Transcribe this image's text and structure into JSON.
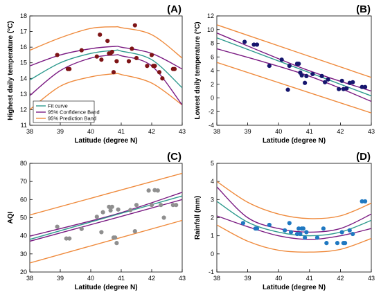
{
  "colors": {
    "fit": "#2e9a8e",
    "confidence": "#7a1a82",
    "prediction": "#ef8a3c",
    "series_a": "#7e1416",
    "series_b": "#16166e",
    "series_c": "#8f8f8f",
    "series_d": "#1f78c1"
  },
  "chart_data": [
    {
      "type": "scatter",
      "panel_label": "(A)",
      "xlabel": "Latitude (degree N)",
      "ylabel": "Highest daily temperature (°C)",
      "xlim": [
        38,
        43
      ],
      "ylim": [
        11,
        18
      ],
      "xticks": [
        "38",
        "39",
        "40",
        "41",
        "42",
        "43"
      ],
      "yticks": [
        "11",
        "12",
        "13",
        "14",
        "15",
        "16",
        "17",
        "18"
      ],
      "legend": {
        "placement": "bottom-left",
        "entries": [
          "Fit curve",
          "95% Confidence Band",
          "95% Prediction Band"
        ]
      },
      "points": {
        "x": [
          38.9,
          39.25,
          39.3,
          39.7,
          40.2,
          40.3,
          40.35,
          40.55,
          40.6,
          40.65,
          40.7,
          40.75,
          40.85,
          41.25,
          41.35,
          41.45,
          41.5,
          41.85,
          42.0,
          42.05,
          42.1,
          42.25,
          42.35,
          42.7,
          42.75
        ],
        "y": [
          15.5,
          14.6,
          14.6,
          15.8,
          15.4,
          16.8,
          15.2,
          16.4,
          15.6,
          15.6,
          15.7,
          14.4,
          15.1,
          15.1,
          15.9,
          17.4,
          15.3,
          14.8,
          15.5,
          14.8,
          14.8,
          14.4,
          14.0,
          14.6,
          14.6
        ]
      },
      "fit": {
        "x": [
          38,
          39,
          40,
          40.8,
          41,
          42,
          43
        ],
        "y": [
          13.9,
          15.0,
          15.6,
          15.8,
          15.75,
          15.2,
          13.4
        ]
      },
      "confidence_upper": {
        "x": [
          38,
          39,
          40,
          40.8,
          41,
          42,
          43
        ],
        "y": [
          14.8,
          15.5,
          15.9,
          16.05,
          16.0,
          15.6,
          14.6
        ]
      },
      "confidence_lower": {
        "x": [
          38,
          39,
          40,
          40.8,
          41,
          42,
          43
        ],
        "y": [
          12.9,
          14.5,
          15.3,
          15.5,
          15.45,
          14.8,
          12.3
        ]
      },
      "prediction_upper": {
        "x": [
          38,
          39,
          40,
          40.8,
          41,
          42,
          43
        ],
        "y": [
          15.8,
          16.6,
          17.2,
          17.3,
          17.25,
          16.8,
          15.3
        ]
      },
      "prediction_lower": {
        "x": [
          38,
          39,
          40,
          40.8,
          41,
          42,
          43
        ],
        "y": [
          12.0,
          13.5,
          14.1,
          14.3,
          14.25,
          13.7,
          12.3
        ]
      }
    },
    {
      "type": "scatter",
      "panel_label": "(B)",
      "xlabel": "Latitude (degree N)",
      "ylabel": "Lowest daily temperature (°C)",
      "xlim": [
        38,
        43
      ],
      "ylim": [
        -4,
        12
      ],
      "xticks": [
        "38",
        "39",
        "40",
        "41",
        "42",
        "43"
      ],
      "yticks": [
        "-4",
        "-2",
        "0",
        "2",
        "4",
        "6",
        "8",
        "10",
        "12"
      ],
      "points": {
        "x": [
          38.9,
          39.2,
          39.3,
          39.7,
          40.1,
          40.3,
          40.35,
          40.6,
          40.65,
          40.7,
          40.75,
          40.85,
          40.9,
          41.1,
          41.4,
          41.5,
          41.6,
          41.95,
          42.05,
          42.1,
          42.2,
          42.3,
          42.4,
          42.7,
          42.8
        ],
        "y": [
          8.2,
          7.8,
          7.8,
          4.7,
          5.6,
          1.2,
          4.7,
          5.0,
          5.0,
          3.7,
          3.3,
          2.2,
          3.2,
          3.5,
          3.2,
          2.3,
          2.7,
          1.3,
          2.5,
          1.3,
          1.4,
          2.2,
          2.3,
          1.6,
          1.6
        ]
      },
      "fit": {
        "x": [
          38,
          43
        ],
        "y": [
          8.8,
          0.3
        ]
      },
      "confidence_upper": {
        "x": [
          38,
          40.8,
          43
        ],
        "y": [
          9.5,
          4.3,
          1.0
        ]
      },
      "confidence_lower": {
        "x": [
          38,
          40.8,
          43
        ],
        "y": [
          7.2,
          3.5,
          -0.5
        ]
      },
      "prediction_upper": {
        "x": [
          38,
          43
        ],
        "y": [
          10.7,
          3.0
        ]
      },
      "prediction_lower": {
        "x": [
          38,
          43
        ],
        "y": [
          5.2,
          -2.2
        ]
      }
    },
    {
      "type": "scatter",
      "panel_label": "(C)",
      "xlabel": "Latitude (degree N)",
      "ylabel": "AQI",
      "xlim": [
        38,
        43
      ],
      "ylim": [
        20,
        80
      ],
      "xticks": [
        "38",
        "39",
        "40",
        "41",
        "42",
        "43"
      ],
      "yticks": [
        "20",
        "30",
        "40",
        "50",
        "60",
        "70",
        "80"
      ],
      "points": {
        "x": [
          38.9,
          39.2,
          39.3,
          39.7,
          40.2,
          40.35,
          40.4,
          40.6,
          40.65,
          40.7,
          40.75,
          40.8,
          40.85,
          40.9,
          41.3,
          41.45,
          41.5,
          41.9,
          42.0,
          42.1,
          42.2,
          42.3,
          42.4,
          42.7,
          42.8
        ],
        "y": [
          45,
          38.5,
          38.5,
          43.8,
          50.5,
          42,
          53,
          56,
          54,
          56,
          39,
          39,
          36,
          54.5,
          54.2,
          42.5,
          57,
          65,
          57,
          65.2,
          65,
          57,
          50,
          57,
          57
        ]
      },
      "fit": {
        "x": [
          38,
          43
        ],
        "y": [
          38.0,
          62.0
        ]
      },
      "confidence_upper": {
        "x": [
          38,
          40.8,
          43
        ],
        "y": [
          39.8,
          51.8,
          64.0
        ]
      },
      "confidence_lower": {
        "x": [
          38,
          40.8,
          43
        ],
        "y": [
          37.0,
          49.8,
          60.0
        ]
      },
      "prediction_upper": {
        "x": [
          38,
          43
        ],
        "y": [
          51.5,
          74.5
        ]
      },
      "prediction_lower": {
        "x": [
          38,
          43
        ],
        "y": [
          25.0,
          48.5
        ]
      }
    },
    {
      "type": "scatter",
      "panel_label": "(D)",
      "xlabel": "Latitude (degree N)",
      "ylabel": "Rainfall (mm)",
      "xlim": [
        38,
        43
      ],
      "ylim": [
        -1,
        5
      ],
      "xticks": [
        "38",
        "39",
        "40",
        "41",
        "42",
        "43"
      ],
      "yticks": [
        "-1",
        "0",
        "1",
        "2",
        "3",
        "4",
        "5"
      ],
      "points": {
        "x": [
          38.85,
          39.25,
          39.3,
          39.7,
          40.2,
          40.35,
          40.4,
          40.6,
          40.65,
          40.7,
          40.75,
          40.8,
          40.85,
          40.9,
          41.25,
          41.45,
          41.55,
          41.9,
          42.05,
          42.1,
          42.15,
          42.3,
          42.4,
          42.7,
          42.8
        ],
        "y": [
          1.7,
          1.4,
          1.4,
          1.6,
          1.3,
          1.7,
          1.2,
          1.1,
          1.4,
          1.1,
          1.4,
          1.4,
          0.9,
          1.2,
          0.9,
          1.4,
          0.6,
          0.6,
          1.2,
          0.6,
          0.6,
          1.3,
          1.1,
          2.9,
          2.9
        ]
      },
      "fit": {
        "x": [
          38,
          39,
          40,
          41,
          42,
          43
        ],
        "y": [
          2.9,
          1.75,
          1.2,
          1.0,
          1.2,
          1.85
        ]
      },
      "confidence_upper": {
        "x": [
          38,
          39,
          40,
          41,
          42,
          43
        ],
        "y": [
          3.7,
          2.0,
          1.4,
          1.2,
          1.4,
          2.2
        ]
      },
      "confidence_lower": {
        "x": [
          38,
          39,
          40,
          41,
          42,
          43
        ],
        "y": [
          2.1,
          1.5,
          1.0,
          0.8,
          1.0,
          1.4
        ]
      },
      "prediction_upper": {
        "x": [
          38,
          39,
          40,
          41,
          42,
          43
        ],
        "y": [
          4.0,
          2.85,
          2.2,
          1.95,
          2.1,
          2.8
        ]
      },
      "prediction_lower": {
        "x": [
          38,
          39,
          40,
          41,
          42,
          43
        ],
        "y": [
          1.6,
          0.7,
          0.2,
          0.1,
          0.25,
          0.85
        ]
      }
    }
  ]
}
